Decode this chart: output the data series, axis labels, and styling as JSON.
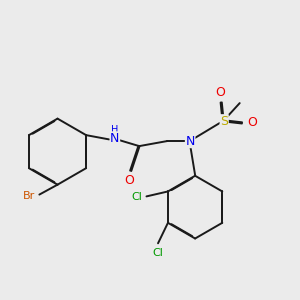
{
  "bg_color": "#ebebeb",
  "bond_color": "#1a1a1a",
  "bond_width": 1.4,
  "atom_colors": {
    "Br": "#cc5500",
    "N": "#0000ee",
    "O": "#ee0000",
    "S": "#bbaa00",
    "Cl": "#009900",
    "H": "#444444",
    "C": "#1a1a1a"
  },
  "font_size_large": 9,
  "font_size_small": 8
}
